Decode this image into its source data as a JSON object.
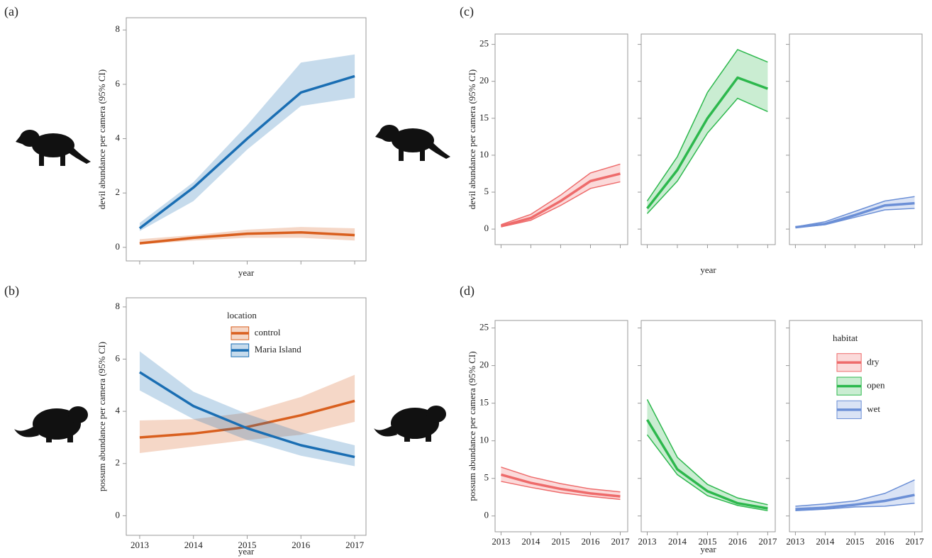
{
  "chart_data": [
    {
      "type": "line",
      "label": "(a)",
      "ylabel": "devil abundance per camera (95% CI)",
      "xlabel": "year",
      "x": [
        2013,
        2014,
        2015,
        2016,
        2017
      ],
      "xlim": [
        2012.75,
        2017.21
      ],
      "xticks": [
        2013,
        2014,
        2015,
        2016,
        2017
      ],
      "xtick_labels": false,
      "ylim": [
        -0.5,
        8.45
      ],
      "yticks": [
        0,
        2,
        4,
        6,
        8
      ],
      "facets": false,
      "band_edges": false,
      "series": [
        {
          "color": "#d95f1e",
          "values": [
            0.15,
            0.35,
            0.5,
            0.55,
            0.45
          ],
          "lower": [
            0.1,
            0.25,
            0.35,
            0.35,
            0.25
          ],
          "upper": [
            0.3,
            0.45,
            0.65,
            0.75,
            0.7
          ]
        },
        {
          "color": "#1a6eb3",
          "values": [
            0.7,
            2.2,
            4.0,
            5.7,
            6.3
          ],
          "lower": [
            0.6,
            1.7,
            3.6,
            5.2,
            5.5
          ],
          "upper": [
            0.9,
            2.4,
            4.5,
            6.8,
            7.1
          ]
        }
      ]
    },
    {
      "type": "line",
      "label": "(b)",
      "ylabel": "possum abundance per camera (95% CI)",
      "xlabel": "year",
      "x": [
        2013,
        2014,
        2015,
        2016,
        2017
      ],
      "xlim": [
        2012.75,
        2017.21
      ],
      "xticks": [
        2013,
        2014,
        2015,
        2016,
        2017
      ],
      "xtick_labels": true,
      "ylim": [
        -0.75,
        8.35
      ],
      "yticks": [
        0,
        2,
        4,
        6,
        8
      ],
      "facets": false,
      "band_edges": false,
      "legend": "upper right",
      "legend_title": "location",
      "series": [
        {
          "name": "control",
          "color": "#d95f1e",
          "values": [
            3.0,
            3.15,
            3.4,
            3.85,
            4.4
          ],
          "lower": [
            2.4,
            2.65,
            2.9,
            3.1,
            3.6
          ],
          "upper": [
            3.65,
            3.7,
            3.95,
            4.55,
            5.4
          ]
        },
        {
          "name": "Maria Island",
          "color": "#1a6eb3",
          "values": [
            5.5,
            4.2,
            3.35,
            2.7,
            2.25
          ],
          "lower": [
            4.8,
            3.7,
            2.9,
            2.3,
            1.9
          ],
          "upper": [
            6.3,
            4.75,
            3.9,
            3.2,
            2.7
          ]
        }
      ]
    },
    {
      "type": "line",
      "label": "(c)",
      "ylabel": "devil abundance per camera (95% CI)",
      "xlabel": "year",
      "x": [
        2013,
        2014,
        2015,
        2016,
        2017
      ],
      "xlim": [
        2012.8,
        2017.25
      ],
      "xticks": [
        2013,
        2014,
        2015,
        2016,
        2017
      ],
      "xtick_labels": false,
      "ylim": [
        -2.1,
        26.4
      ],
      "yticks": [
        0,
        5,
        10,
        15,
        20,
        25
      ],
      "facets": true,
      "band_edges": true,
      "series": [
        {
          "color": "#ee6b6b",
          "values": [
            0.4,
            1.5,
            3.8,
            6.5,
            7.5
          ],
          "lower": [
            0.3,
            1.2,
            3.2,
            5.5,
            6.4
          ],
          "upper": [
            0.6,
            2.0,
            4.6,
            7.6,
            8.8
          ]
        },
        {
          "color": "#2db84d",
          "values": [
            2.8,
            8,
            15,
            20.5,
            19
          ],
          "lower": [
            2.1,
            6.5,
            13,
            17.7,
            15.9
          ],
          "upper": [
            3.8,
            9.8,
            18.5,
            24.3,
            22.6
          ]
        },
        {
          "color": "#6b8fd6",
          "values": [
            0.25,
            0.7,
            1.9,
            3.2,
            3.5
          ],
          "lower": [
            0.2,
            0.6,
            1.6,
            2.6,
            2.8
          ],
          "upper": [
            0.3,
            1.0,
            2.4,
            3.8,
            4.4
          ]
        }
      ]
    },
    {
      "type": "line",
      "label": "(d)",
      "ylabel": "possum abundance per camera (95% CI)",
      "xlabel": "year",
      "x": [
        2013,
        2014,
        2015,
        2016,
        2017
      ],
      "xlim": [
        2012.8,
        2017.25
      ],
      "xticks": [
        2013,
        2014,
        2015,
        2016,
        2017
      ],
      "xtick_labels": true,
      "ylim": [
        -2.1,
        26.0
      ],
      "yticks": [
        0,
        5,
        10,
        15,
        20,
        25
      ],
      "facets": true,
      "band_edges": true,
      "legend": "upper right",
      "legend_title": "habitat",
      "series": [
        {
          "name": "dry",
          "color": "#ee6b6b",
          "values": [
            5.5,
            4.4,
            3.6,
            3.0,
            2.6
          ],
          "lower": [
            4.6,
            3.8,
            3.1,
            2.6,
            2.2
          ],
          "upper": [
            6.5,
            5.2,
            4.3,
            3.6,
            3.2
          ]
        },
        {
          "name": "open",
          "color": "#2db84d",
          "values": [
            12.8,
            6.2,
            3.3,
            1.7,
            1.0
          ],
          "lower": [
            10.8,
            5.5,
            2.7,
            1.4,
            0.7
          ],
          "upper": [
            15.5,
            7.8,
            4.2,
            2.4,
            1.5
          ]
        },
        {
          "name": "wet",
          "color": "#6b8fd6",
          "values": [
            0.9,
            1.1,
            1.5,
            2.0,
            2.8
          ],
          "lower": [
            0.7,
            0.9,
            1.2,
            1.3,
            1.7
          ],
          "upper": [
            1.3,
            1.6,
            2.0,
            3.0,
            4.8
          ]
        }
      ]
    }
  ]
}
